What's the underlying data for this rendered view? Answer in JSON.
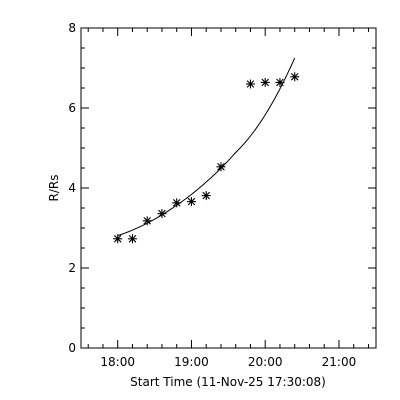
{
  "chart_data": {
    "type": "scatter",
    "title": "",
    "xlabel": "Start Time (11-Nov-25 17:30:08)",
    "ylabel": "R/Rs",
    "xlim": [
      "17:30:08",
      "21:30:08"
    ],
    "ylim": [
      0,
      8
    ],
    "x_ticks": [
      "18:00",
      "19:00",
      "20:00",
      "21:00"
    ],
    "y_ticks": [
      "0",
      "2",
      "4",
      "6",
      "8"
    ],
    "grid": false,
    "marker": "asterisk",
    "series": [
      {
        "name": "",
        "x": [
          "18:00",
          "18:12",
          "18:24",
          "18:36",
          "18:48",
          "19:00",
          "19:12",
          "19:24",
          "19:48",
          "20:00",
          "20:12",
          "20:24"
        ],
        "y": [
          2.73,
          2.73,
          3.18,
          3.36,
          3.63,
          3.66,
          3.81,
          4.53,
          6.6,
          6.64,
          6.64,
          6.78
        ]
      }
    ],
    "fit_curve": {
      "x": [
        "18:00",
        "18:24",
        "18:48",
        "19:12",
        "19:36",
        "20:00",
        "20:24"
      ],
      "y": [
        2.81,
        3.12,
        3.57,
        4.15,
        4.89,
        5.83,
        7.25
      ]
    }
  }
}
